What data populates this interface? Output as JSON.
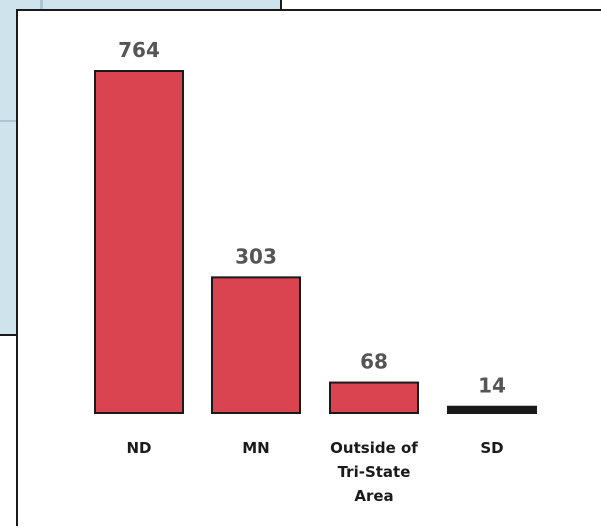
{
  "chart_data": {
    "type": "bar",
    "categories": [
      "ND",
      "MN",
      "Outside of\nTri-State\nArea",
      "SD"
    ],
    "values": [
      764,
      303,
      68,
      14
    ],
    "title": "",
    "xlabel": "",
    "ylabel": "",
    "ylim": [
      0,
      764
    ],
    "grid": false,
    "legend": "none",
    "colors": {
      "bar_fill": "#d94450",
      "bar_stroke": "#1a1a1a",
      "value_label": "#555555",
      "category_label": "#1a1a1a"
    }
  }
}
